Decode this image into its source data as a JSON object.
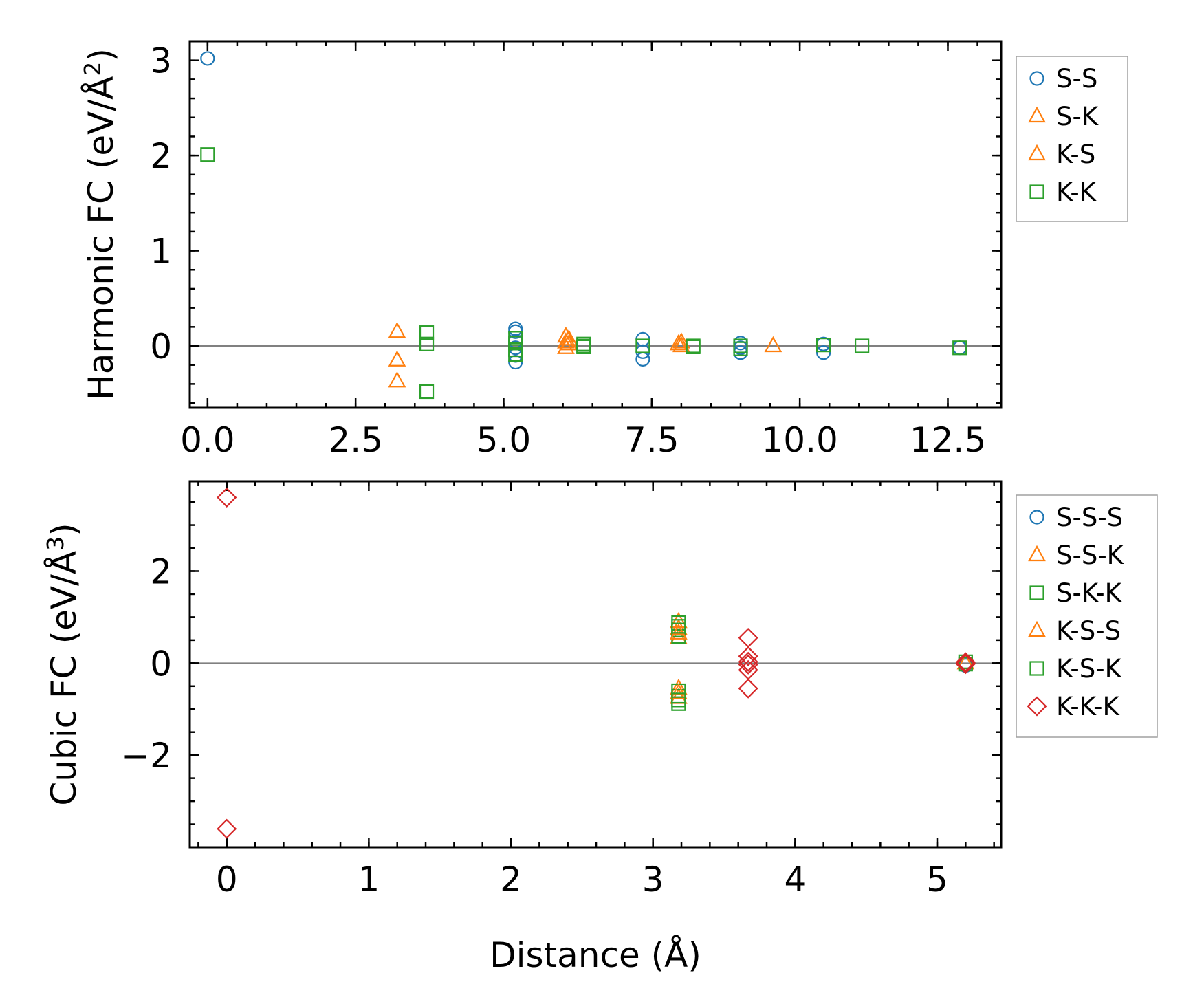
{
  "figure": {
    "xlabel": "Distance (Å)"
  },
  "chart_data": [
    {
      "type": "scatter",
      "ylabel_main": "Harmonic FC (eV/Å",
      "ylabel_sup": "2",
      "ylabel_close": ")",
      "xlim": [
        -0.3,
        13.4
      ],
      "ylim": [
        -0.65,
        3.2
      ],
      "xticks": [
        0.0,
        2.5,
        5.0,
        7.5,
        10.0,
        12.5
      ],
      "xtick_labels": [
        "0.0",
        "2.5",
        "5.0",
        "7.5",
        "10.0",
        "12.5"
      ],
      "xminor": 0.5,
      "yticks": [
        0,
        1,
        2,
        3
      ],
      "ytick_labels": [
        "0",
        "1",
        "2",
        "3"
      ],
      "yminor": 0.2,
      "zero_line": true,
      "legend_position": "outside-right-top",
      "series": [
        {
          "name": "S-S",
          "marker": "circle",
          "color": "#1f77b4",
          "points": [
            [
              0.0,
              3.02
            ],
            [
              5.2,
              0.18
            ],
            [
              5.2,
              0.15
            ],
            [
              5.2,
              0.05
            ],
            [
              5.2,
              -0.02
            ],
            [
              5.2,
              -0.1
            ],
            [
              5.2,
              -0.17
            ],
            [
              7.35,
              0.07
            ],
            [
              7.35,
              -0.06
            ],
            [
              7.35,
              -0.14
            ],
            [
              9.0,
              0.03
            ],
            [
              9.0,
              -0.02
            ],
            [
              9.0,
              -0.07
            ],
            [
              10.4,
              0.02
            ],
            [
              10.4,
              -0.07
            ],
            [
              12.7,
              -0.02
            ]
          ]
        },
        {
          "name": "S-K",
          "marker": "triangle",
          "color": "#ff7f0e",
          "points": [
            [
              3.2,
              0.15
            ],
            [
              3.2,
              -0.15
            ],
            [
              3.2,
              -0.37
            ],
            [
              6.05,
              0.1
            ],
            [
              6.05,
              0.04
            ],
            [
              6.05,
              -0.02
            ],
            [
              8.0,
              0.04
            ],
            [
              8.0,
              0.0
            ],
            [
              9.55,
              0.0
            ]
          ]
        },
        {
          "name": "K-S",
          "marker": "triangle",
          "color": "#ff7f0e",
          "points": [
            [
              6.1,
              0.07
            ],
            [
              6.1,
              0.02
            ],
            [
              7.95,
              0.02
            ]
          ]
        },
        {
          "name": "K-K",
          "marker": "square",
          "color": "#2ca02c",
          "points": [
            [
              0.0,
              2.01
            ],
            [
              3.7,
              0.14
            ],
            [
              3.7,
              0.02
            ],
            [
              3.7,
              -0.48
            ],
            [
              5.2,
              0.08
            ],
            [
              5.2,
              0.03
            ],
            [
              5.2,
              -0.04
            ],
            [
              5.2,
              -0.09
            ],
            [
              6.35,
              0.02
            ],
            [
              6.35,
              0.0
            ],
            [
              6.35,
              -0.01
            ],
            [
              7.35,
              0.0
            ],
            [
              8.2,
              0.0
            ],
            [
              8.2,
              -0.01
            ],
            [
              9.0,
              0.0
            ],
            [
              9.0,
              -0.03
            ],
            [
              10.4,
              0.01
            ],
            [
              11.05,
              0.0
            ],
            [
              12.7,
              -0.02
            ]
          ]
        }
      ]
    },
    {
      "type": "scatter",
      "ylabel_main": "Cubic FC (eV/Å",
      "ylabel_sup": "3",
      "ylabel_close": ")",
      "xlabel": "Distance (Å)",
      "xlim": [
        -0.26,
        5.45
      ],
      "ylim": [
        -4.0,
        3.95
      ],
      "xticks": [
        0,
        1,
        2,
        3,
        4,
        5
      ],
      "xtick_labels": [
        "0",
        "1",
        "2",
        "3",
        "4",
        "5"
      ],
      "xminor": 0.2,
      "yticks": [
        -2,
        0,
        2
      ],
      "ytick_labels": [
        "−2",
        "0",
        "2"
      ],
      "yminor": 0.5,
      "zero_line": true,
      "legend_position": "outside-right-top",
      "series": [
        {
          "name": "S-S-S",
          "marker": "circle",
          "color": "#1f77b4",
          "points": [
            [
              5.2,
              0.02
            ],
            [
              5.2,
              -0.05
            ]
          ]
        },
        {
          "name": "S-S-K",
          "marker": "triangle",
          "color": "#ff7f0e",
          "points": [
            [
              3.18,
              0.9
            ],
            [
              3.18,
              0.75
            ],
            [
              3.18,
              0.55
            ],
            [
              3.18,
              -0.55
            ],
            [
              3.18,
              -0.75
            ],
            [
              5.2,
              0.0
            ]
          ]
        },
        {
          "name": "S-K-K",
          "marker": "square",
          "color": "#2ca02c",
          "points": [
            [
              3.18,
              0.88
            ],
            [
              3.18,
              0.72
            ],
            [
              3.18,
              0.58
            ],
            [
              3.18,
              -0.6
            ],
            [
              3.18,
              -0.72
            ],
            [
              3.18,
              -0.88
            ],
            [
              5.2,
              0.03
            ]
          ]
        },
        {
          "name": "K-S-S",
          "marker": "triangle",
          "color": "#ff7f0e",
          "points": [
            [
              3.18,
              0.65
            ],
            [
              3.18,
              -0.65
            ]
          ]
        },
        {
          "name": "K-S-K",
          "marker": "square",
          "color": "#2ca02c",
          "points": [
            [
              3.18,
              0.8
            ],
            [
              3.18,
              -0.8
            ],
            [
              5.2,
              -0.02
            ]
          ]
        },
        {
          "name": "K-K-K",
          "marker": "diamond",
          "color": "#d62728",
          "points": [
            [
              0.0,
              3.6
            ],
            [
              0.0,
              -3.6
            ],
            [
              3.67,
              0.55
            ],
            [
              3.67,
              0.15
            ],
            [
              3.67,
              0.03
            ],
            [
              3.67,
              -0.03
            ],
            [
              3.67,
              -0.15
            ],
            [
              3.67,
              -0.55
            ],
            [
              5.2,
              0.02
            ],
            [
              5.2,
              0.0
            ],
            [
              5.2,
              -0.02
            ]
          ]
        }
      ]
    }
  ]
}
